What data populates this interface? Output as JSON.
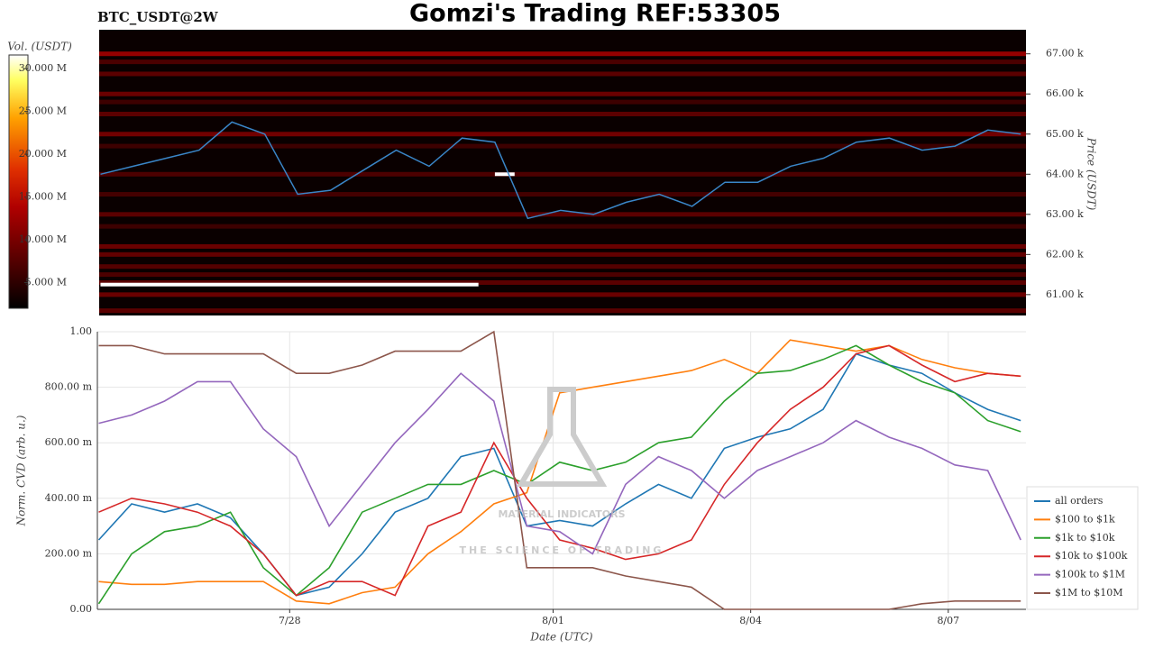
{
  "chart_data": [
    {
      "type": "heatmap",
      "title": "Gomzi's Trading REF:53305",
      "subtitle": "BTC_USDT@2W",
      "y_label": "Price (USDT)",
      "colorbar_label": "Vol. (USDT)",
      "x": [
        25.1,
        25.6,
        26.1,
        26.6,
        27.1,
        27.6,
        28.1,
        28.6,
        29.1,
        29.6,
        30.1,
        30.6,
        31.1,
        31.6,
        32.1,
        32.6,
        33.1,
        33.6,
        34.1,
        34.6,
        35.1,
        35.6,
        36.1,
        36.6,
        37.1,
        37.6,
        38.1,
        38.6,
        39.1
      ],
      "xlim": [
        25.08,
        39.18
      ],
      "ylim": [
        60480,
        67600
      ],
      "yticks": [
        {
          "value": 61000,
          "label": "61.00 k"
        },
        {
          "value": 62000,
          "label": "62.00 k"
        },
        {
          "value": 63000,
          "label": "63.00 k"
        },
        {
          "value": 64000,
          "label": "64.00 k"
        },
        {
          "value": 65000,
          "label": "65.00 k"
        },
        {
          "value": 66000,
          "label": "66.00 k"
        },
        {
          "value": 67000,
          "label": "67.00 k"
        }
      ],
      "price": {
        "color": "#3a86c8",
        "values": [
          64000,
          64200,
          64400,
          64600,
          65300,
          65000,
          63500,
          63600,
          64100,
          64600,
          64200,
          64900,
          64800,
          62900,
          63100,
          63000,
          63300,
          63500,
          63200,
          63800,
          63800,
          64200,
          64400,
          64800,
          64900,
          64600,
          64700,
          65100,
          65000
        ]
      },
      "levels": {
        "prices": [
          67000,
          66800,
          66500,
          66000,
          65800,
          65500,
          65000,
          64700,
          64000,
          63500,
          63000,
          62700,
          62200,
          62000,
          61700,
          61500,
          61300,
          61000,
          60600
        ],
        "volumes": [
          12000000,
          7000000,
          8000000,
          9000000,
          6000000,
          8000000,
          9500000,
          6000000,
          7000000,
          6500000,
          8000000,
          6000000,
          9000000,
          8500000,
          7500000,
          7000000,
          8000000,
          9000000,
          8000000
        ]
      },
      "walls": {
        "prices": [
          64000,
          61250
        ],
        "x_start": [
          31.1,
          25.1
        ],
        "x_end": [
          31.4,
          30.85
        ],
        "volumes": [
          32000000,
          32000000
        ]
      },
      "clim": [
        2000000,
        31600000
      ],
      "cticks": [
        {
          "value": 5000000,
          "label": "5.000 M"
        },
        {
          "value": 10000000,
          "label": "10.000 M"
        },
        {
          "value": 15000000,
          "label": "15.000 M"
        },
        {
          "value": 20000000,
          "label": "20.000 M"
        },
        {
          "value": 25000000,
          "label": "25.000 M"
        },
        {
          "value": 30000000,
          "label": "30.000 M"
        }
      ]
    },
    {
      "type": "line",
      "x_label": "Date (UTC)",
      "y_label": "Norm. CVD (arb. u.)",
      "x": [
        25.1,
        25.6,
        26.1,
        26.6,
        27.1,
        27.6,
        28.1,
        28.6,
        29.1,
        29.6,
        30.1,
        30.6,
        31.1,
        31.6,
        32.1,
        32.6,
        33.1,
        33.6,
        34.1,
        34.6,
        35.1,
        35.6,
        36.1,
        36.6,
        37.1,
        37.6,
        38.1,
        38.6,
        39.1
      ],
      "xlim": [
        25.08,
        39.18
      ],
      "xticks": [
        {
          "value": 28,
          "label": "7/28"
        },
        {
          "value": 32,
          "label": "8/01"
        },
        {
          "value": 35,
          "label": "8/04"
        },
        {
          "value": 38,
          "label": "8/07"
        }
      ],
      "ylim": [
        0,
        1
      ],
      "yticks": [
        {
          "value": 0,
          "label": "0.00"
        },
        {
          "value": 0.2,
          "label": "200.00 m"
        },
        {
          "value": 0.4,
          "label": "400.00 m"
        },
        {
          "value": 0.6,
          "label": "600.00 m"
        },
        {
          "value": 0.8,
          "label": "800.00 m"
        },
        {
          "value": 1,
          "label": "1.00"
        }
      ],
      "grid": true,
      "series": [
        {
          "name": "all orders",
          "color": "#1f77b4",
          "values": [
            0.25,
            0.38,
            0.35,
            0.38,
            0.33,
            0.2,
            0.05,
            0.08,
            0.2,
            0.35,
            0.4,
            0.55,
            0.58,
            0.3,
            0.32,
            0.3,
            0.38,
            0.45,
            0.4,
            0.58,
            0.62,
            0.65,
            0.72,
            0.92,
            0.88,
            0.85,
            0.78,
            0.72,
            0.68
          ]
        },
        {
          "name": "$100 to $1k",
          "color": "#ff7f0e",
          "values": [
            0.1,
            0.09,
            0.09,
            0.1,
            0.1,
            0.1,
            0.03,
            0.02,
            0.06,
            0.08,
            0.2,
            0.28,
            0.38,
            0.42,
            0.78,
            0.8,
            0.82,
            0.84,
            0.86,
            0.9,
            0.85,
            0.97,
            0.95,
            0.93,
            0.95,
            0.9,
            0.87,
            0.85,
            0.84
          ]
        },
        {
          "name": "$1k to $10k",
          "color": "#2ca02c",
          "values": [
            0.02,
            0.2,
            0.28,
            0.3,
            0.35,
            0.15,
            0.05,
            0.15,
            0.35,
            0.4,
            0.45,
            0.45,
            0.5,
            0.45,
            0.53,
            0.5,
            0.53,
            0.6,
            0.62,
            0.75,
            0.85,
            0.86,
            0.9,
            0.95,
            0.88,
            0.82,
            0.78,
            0.68,
            0.64
          ]
        },
        {
          "name": "$10k to $100k",
          "color": "#d62728",
          "values": [
            0.35,
            0.4,
            0.38,
            0.35,
            0.3,
            0.2,
            0.05,
            0.1,
            0.1,
            0.05,
            0.3,
            0.35,
            0.6,
            0.4,
            0.25,
            0.22,
            0.18,
            0.2,
            0.25,
            0.45,
            0.6,
            0.72,
            0.8,
            0.92,
            0.95,
            0.88,
            0.82,
            0.85,
            0.84
          ]
        },
        {
          "name": "$100k to $1M",
          "color": "#9467bd",
          "values": [
            0.67,
            0.7,
            0.75,
            0.82,
            0.82,
            0.65,
            0.55,
            0.3,
            0.45,
            0.6,
            0.72,
            0.85,
            0.75,
            0.3,
            0.28,
            0.2,
            0.45,
            0.55,
            0.5,
            0.4,
            0.5,
            0.55,
            0.6,
            0.68,
            0.62,
            0.58,
            0.52,
            0.5,
            0.25
          ]
        },
        {
          "name": "$1M to $10M",
          "color": "#8c564b",
          "values": [
            0.95,
            0.95,
            0.92,
            0.92,
            0.92,
            0.92,
            0.85,
            0.85,
            0.88,
            0.93,
            0.93,
            0.93,
            1.0,
            0.15,
            0.15,
            0.15,
            0.12,
            0.1,
            0.08,
            0,
            0,
            0,
            0,
            0,
            0,
            0.02,
            0.03,
            0.03,
            0.03
          ]
        }
      ]
    }
  ],
  "watermark": {
    "title": "MATERIAL INDICATORS",
    "subtitle": "THE SCIENCE OF TRADING"
  }
}
